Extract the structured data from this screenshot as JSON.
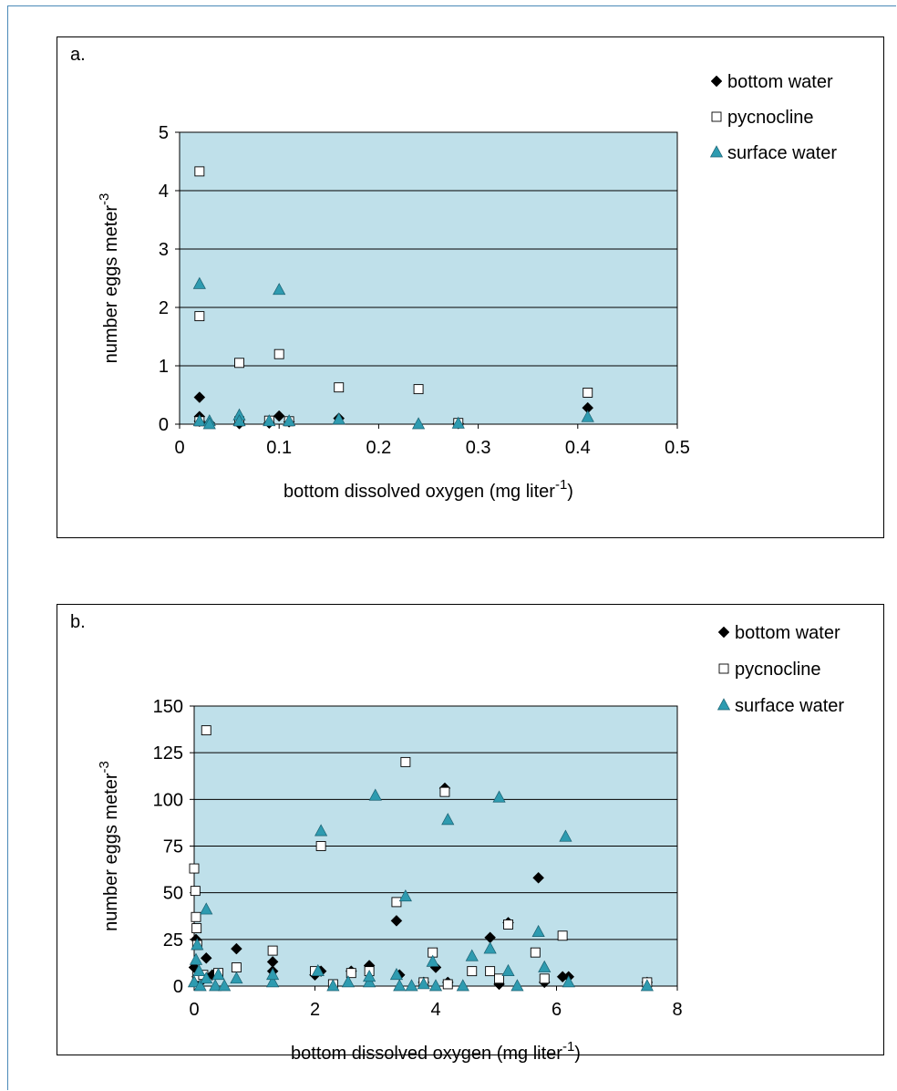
{
  "chart_data": [
    {
      "type": "scatter",
      "panel_label": "a.",
      "xlabel": "bottom dissolved oxygen (mg liter",
      "xlabel_sup": "-1",
      "xlabel_end": ")",
      "ylabel": "number eggs meter",
      "ylabel_sup": "-3",
      "xlim": [
        0,
        0.5
      ],
      "ylim": [
        0,
        5
      ],
      "xticks": [
        0,
        0.1,
        0.2,
        0.3,
        0.4,
        0.5
      ],
      "xtick_labels": [
        "0",
        "0.1",
        "0.2",
        "0.3",
        "0.4",
        "0.5"
      ],
      "yticks": [
        0,
        1,
        2,
        3,
        4,
        5
      ],
      "ytick_labels": [
        "0",
        "1",
        "2",
        "3",
        "4",
        "5"
      ],
      "grid": "horizontal",
      "plot_background": "#bfe0ea",
      "legend_position": "right",
      "series": [
        {
          "name": "bottom water",
          "marker": "diamond",
          "color": "#000000",
          "points": [
            [
              0.02,
              0.46
            ],
            [
              0.02,
              0.13
            ],
            [
              0.02,
              0.05
            ],
            [
              0.03,
              0.02
            ],
            [
              0.06,
              0.01
            ],
            [
              0.06,
              0.08
            ],
            [
              0.09,
              0.02
            ],
            [
              0.1,
              0.14
            ],
            [
              0.11,
              0.04
            ],
            [
              0.16,
              0.1
            ],
            [
              0.28,
              0.01
            ],
            [
              0.41,
              0.28
            ]
          ]
        },
        {
          "name": "pycnocline",
          "marker": "square",
          "color": "#ffffff",
          "points": [
            [
              0.02,
              4.33
            ],
            [
              0.02,
              1.85
            ],
            [
              0.02,
              0.05
            ],
            [
              0.06,
              1.05
            ],
            [
              0.06,
              0.05
            ],
            [
              0.1,
              1.2
            ],
            [
              0.09,
              0.06
            ],
            [
              0.11,
              0.05
            ],
            [
              0.16,
              0.63
            ],
            [
              0.24,
              0.6
            ],
            [
              0.28,
              0.02
            ],
            [
              0.41,
              0.54
            ]
          ]
        },
        {
          "name": "surface water",
          "marker": "triangle",
          "color": "#2e9bb0",
          "points": [
            [
              0.02,
              2.4
            ],
            [
              0.02,
              0.05
            ],
            [
              0.03,
              0.05
            ],
            [
              0.03,
              0.0
            ],
            [
              0.06,
              0.15
            ],
            [
              0.06,
              0.05
            ],
            [
              0.09,
              0.05
            ],
            [
              0.1,
              2.3
            ],
            [
              0.11,
              0.05
            ],
            [
              0.16,
              0.08
            ],
            [
              0.24,
              0.0
            ],
            [
              0.28,
              0.01
            ],
            [
              0.41,
              0.12
            ]
          ]
        }
      ]
    },
    {
      "type": "scatter",
      "panel_label": "b.",
      "xlabel": "bottom dissolved oxygen (mg liter",
      "xlabel_sup": "-1",
      "xlabel_end": ")",
      "ylabel": "number eggs meter",
      "ylabel_sup": "-3",
      "xlim": [
        0,
        8
      ],
      "ylim": [
        0,
        150
      ],
      "xticks": [
        0,
        2,
        4,
        6,
        8
      ],
      "xtick_labels": [
        "0",
        "2",
        "4",
        "6",
        "8"
      ],
      "yticks": [
        0,
        25,
        50,
        75,
        100,
        125,
        150
      ],
      "ytick_labels": [
        "0",
        "25",
        "50",
        "75",
        "100",
        "125",
        "150"
      ],
      "grid": "horizontal",
      "plot_background": "#bfe0ea",
      "legend_position": "right",
      "series": [
        {
          "name": "bottom water",
          "marker": "diamond",
          "color": "#000000",
          "points": [
            [
              0.0,
              10
            ],
            [
              0.03,
              25
            ],
            [
              0.05,
              5
            ],
            [
              0.1,
              2
            ],
            [
              0.2,
              15
            ],
            [
              0.3,
              6
            ],
            [
              0.7,
              20
            ],
            [
              1.3,
              13
            ],
            [
              1.3,
              8
            ],
            [
              2.0,
              6
            ],
            [
              2.1,
              8
            ],
            [
              2.6,
              8
            ],
            [
              2.9,
              11
            ],
            [
              3.35,
              35
            ],
            [
              3.4,
              6
            ],
            [
              3.8,
              2
            ],
            [
              4.0,
              10
            ],
            [
              4.15,
              106
            ],
            [
              4.2,
              2
            ],
            [
              4.9,
              26
            ],
            [
              5.05,
              1
            ],
            [
              5.2,
              34
            ],
            [
              5.7,
              58
            ],
            [
              5.8,
              2
            ],
            [
              6.1,
              5
            ],
            [
              6.2,
              5
            ],
            [
              7.5,
              2
            ]
          ]
        },
        {
          "name": "pycnocline",
          "marker": "square",
          "color": "#ffffff",
          "points": [
            [
              0.0,
              63
            ],
            [
              0.02,
              51
            ],
            [
              0.03,
              37
            ],
            [
              0.04,
              31
            ],
            [
              0.05,
              22
            ],
            [
              0.05,
              5
            ],
            [
              0.2,
              137
            ],
            [
              0.15,
              6
            ],
            [
              0.4,
              7
            ],
            [
              0.7,
              10
            ],
            [
              1.3,
              19
            ],
            [
              2.0,
              8
            ],
            [
              2.1,
              75
            ],
            [
              2.3,
              1
            ],
            [
              2.6,
              7
            ],
            [
              2.9,
              8
            ],
            [
              3.35,
              45
            ],
            [
              3.5,
              120
            ],
            [
              3.8,
              2
            ],
            [
              3.95,
              18
            ],
            [
              4.15,
              104
            ],
            [
              4.2,
              1
            ],
            [
              4.6,
              8
            ],
            [
              4.9,
              8
            ],
            [
              5.05,
              4
            ],
            [
              5.2,
              33
            ],
            [
              5.65,
              18
            ],
            [
              5.8,
              4
            ],
            [
              6.1,
              27
            ],
            [
              7.5,
              2
            ]
          ]
        },
        {
          "name": "surface water",
          "marker": "triangle",
          "color": "#2e9bb0",
          "points": [
            [
              0.0,
              2
            ],
            [
              0.03,
              14
            ],
            [
              0.05,
              22
            ],
            [
              0.08,
              8
            ],
            [
              0.1,
              0
            ],
            [
              0.2,
              41
            ],
            [
              0.2,
              4
            ],
            [
              0.35,
              0
            ],
            [
              0.4,
              6
            ],
            [
              0.5,
              0
            ],
            [
              0.7,
              4
            ],
            [
              1.3,
              2
            ],
            [
              1.3,
              6
            ],
            [
              2.05,
              8
            ],
            [
              2.1,
              83
            ],
            [
              2.3,
              0
            ],
            [
              2.55,
              2
            ],
            [
              2.9,
              2
            ],
            [
              2.9,
              5
            ],
            [
              3.0,
              102
            ],
            [
              3.35,
              6
            ],
            [
              3.5,
              48
            ],
            [
              3.4,
              0
            ],
            [
              3.6,
              0
            ],
            [
              3.8,
              1
            ],
            [
              3.95,
              13
            ],
            [
              4.0,
              0
            ],
            [
              4.2,
              89
            ],
            [
              4.45,
              0
            ],
            [
              4.6,
              16
            ],
            [
              4.9,
              20
            ],
            [
              5.05,
              101
            ],
            [
              5.2,
              8
            ],
            [
              5.35,
              0
            ],
            [
              5.7,
              29
            ],
            [
              5.8,
              10
            ],
            [
              6.15,
              80
            ],
            [
              6.2,
              2
            ],
            [
              7.5,
              0
            ]
          ]
        }
      ]
    }
  ]
}
